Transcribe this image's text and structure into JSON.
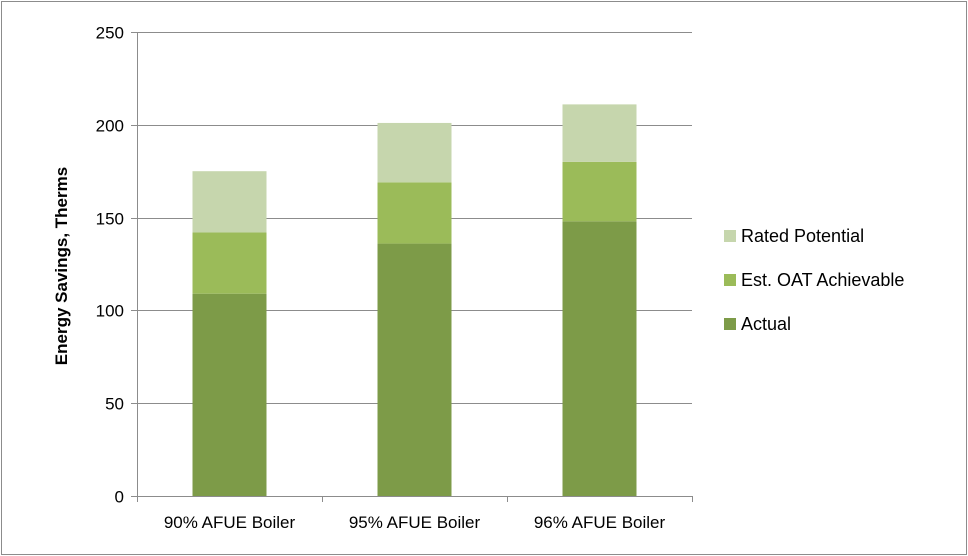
{
  "chart_data": {
    "type": "bar",
    "stacked": true,
    "categories": [
      "90% AFUE Boiler",
      "95% AFUE Boiler",
      "96% AFUE Boiler"
    ],
    "series": [
      {
        "name": "Actual",
        "values": [
          109,
          136,
          148
        ],
        "color": "#7d9b48"
      },
      {
        "name": "Est. OAT Achievable",
        "values": [
          33,
          33,
          32
        ],
        "color": "#9bbb59"
      },
      {
        "name": "Rated Potential",
        "values": [
          33,
          32,
          31
        ],
        "color": "#c6d6ad"
      }
    ],
    "title": "",
    "xlabel": "",
    "ylabel": "Energy Savings, Therms",
    "ylim": [
      0,
      250
    ],
    "yticks": [
      0,
      50,
      100,
      150,
      200,
      250
    ],
    "grid": true,
    "legend_position": "right"
  }
}
